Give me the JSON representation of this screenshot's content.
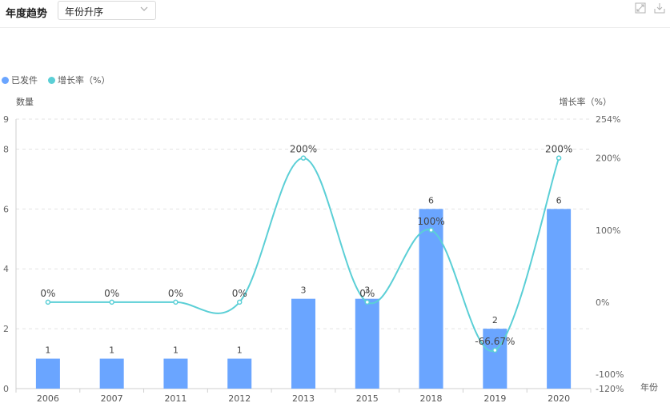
{
  "header": {
    "title": "年度趋势",
    "sort_select": {
      "value": "年份升序"
    },
    "tools": [
      {
        "icon": "expand-icon"
      },
      {
        "icon": "download-icon"
      }
    ]
  },
  "chart_data": {
    "type": "bar+line",
    "categories": [
      "2006",
      "2007",
      "2011",
      "2012",
      "2013",
      "2015",
      "2018",
      "2019",
      "2020"
    ],
    "series": [
      {
        "name": "已发件",
        "type": "bar",
        "axis": "left",
        "color": "#6aa5ff",
        "values": [
          1,
          1,
          1,
          1,
          3,
          3,
          6,
          2,
          6
        ],
        "labels": [
          "1",
          "1",
          "1",
          "1",
          "3",
          "3",
          "6",
          "2",
          "6"
        ]
      },
      {
        "name": "增长率（%）",
        "type": "line",
        "smooth": true,
        "axis": "right",
        "color": "#5bcfd6",
        "values": [
          0,
          0,
          0,
          0,
          200,
          0,
          100,
          -66.67,
          200
        ],
        "labels": [
          "0%",
          "0%",
          "0%",
          "0%",
          "200%",
          "0%",
          "100%",
          "-66.67%",
          "200%"
        ]
      }
    ],
    "left_axis": {
      "label": "数量",
      "ylim": [
        0,
        9
      ],
      "ticks": [
        {
          "value": 0,
          "label": "0"
        },
        {
          "value": 2,
          "label": "2"
        },
        {
          "value": 4,
          "label": "4"
        },
        {
          "value": 6,
          "label": "6"
        },
        {
          "value": 8,
          "label": "8"
        },
        {
          "value": 9,
          "label": "9"
        }
      ]
    },
    "right_axis": {
      "label": "增长率（%）",
      "ylim": [
        -120,
        254
      ],
      "ticks": [
        {
          "value": -120,
          "label": "-120%"
        },
        {
          "value": -100,
          "label": "-100%"
        },
        {
          "value": 0,
          "label": "0%"
        },
        {
          "value": 100,
          "label": "100%"
        },
        {
          "value": 200,
          "label": "200%"
        },
        {
          "value": 254,
          "label": "254%"
        }
      ]
    },
    "x_axis": {
      "label": "年份"
    },
    "legend_position": "top-left",
    "grid": true
  }
}
